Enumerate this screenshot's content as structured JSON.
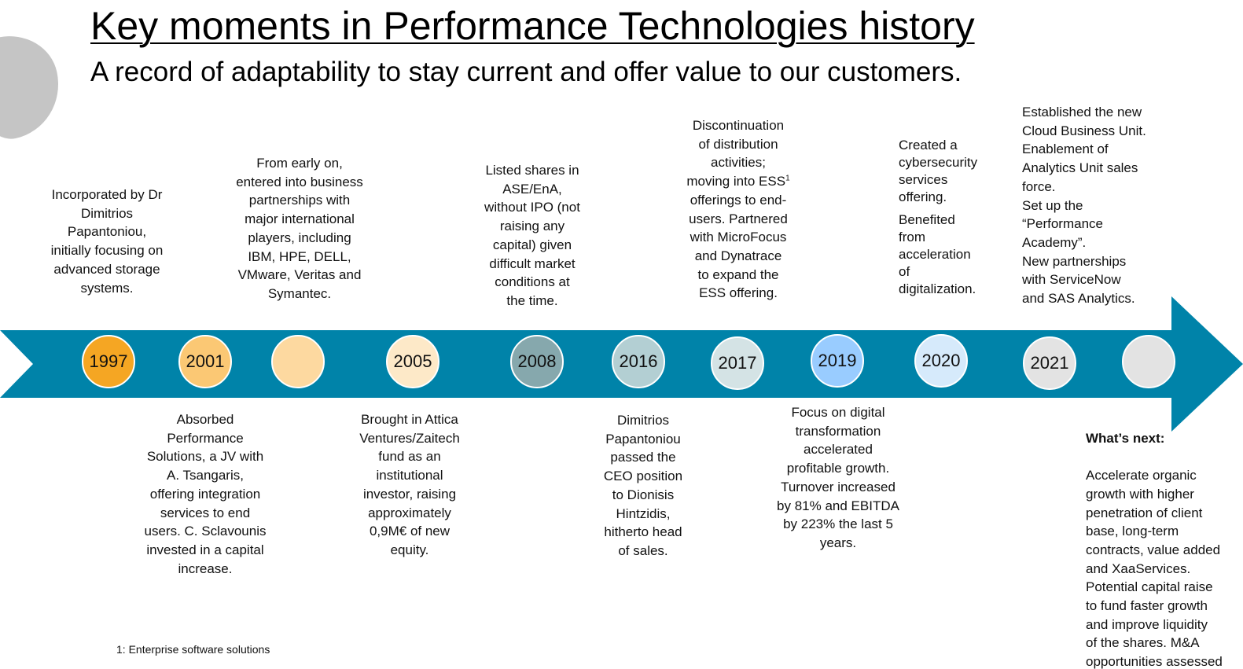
{
  "title": "Key moments in Performance Technologies history",
  "subtitle": "A record of adaptability to stay current and offer value to our customers.",
  "colors": {
    "arrow": "#0083a9",
    "c1997": "#f5a623",
    "c2001": "#fbc874",
    "c_blank_orange": "#fdd9a0",
    "c2005": "#fde9c8",
    "c2008": "#86a8ad",
    "c2016": "#b3cfd3",
    "c2017": "#d4e3e5",
    "c2019": "#99ccff",
    "c2020": "#d6eafb",
    "c2021": "#e3e3e3",
    "c_blank_grey": "#e3e3e3"
  },
  "milestones": {
    "y1997": "1997",
    "y2001": "2001",
    "y2005": "2005",
    "y2008": "2008",
    "y2016": "2016",
    "y2017": "2017",
    "y2019": "2019",
    "y2020": "2020",
    "y2021": "2021"
  },
  "texts": {
    "t1997": "Incorporated by Dr\nDimitrios\nPapantoniou,\ninitially focusing on\nadvanced storage\nsystems.",
    "t_partners": "From early on,\nentered into business\npartnerships with\nmajor international\nplayers, including\nIBM, HPE, DELL,\nVMware, Veritas and\nSymantec.",
    "t2008": "Listed  shares in\nASE/EnA,\nwithout IPO (not\nraising any\ncapital) given\ndifficult market\nconditions at\nthe time.",
    "t2017_line1": "Discontinuation\nof distribution\nactivities;\nmoving into ESS",
    "t2017_sup": "1",
    "t2017_line2": "\nofferings to end-\nusers. Partnered\nwith MicroFocus\nand Dynatrace\nto expand the\nESS offering.",
    "t2020a": "Created a\ncybersecurity\nservices\noffering.",
    "t2020b": "Benefited\nfrom\nacceleration\nof\ndigitalization.",
    "t2021": "Established the new\nCloud Business Unit.\nEnablement of\nAnalytics Unit sales\nforce.\nSet up the\n“Performance\nAcademy”.\nNew partnerships\nwith ServiceNow\nand SAS Analytics.",
    "t2001": "Absorbed\nPerformance\nSolutions, a JV with\nA. Tsangaris,\noffering integration\nservices to end\nusers. C. Sclavounis\ninvested in a capital\nincrease.",
    "t2005": "Brought in Attica\nVentures/Zaitech\nfund as an\ninstitutional\ninvestor, raising\napproximately\n0,9M€ of new\nequity.",
    "t2016": "Dimitrios\nPapantoniou\npassed the\nCEO position\nto Dionisis\nHintzidis,\nhitherto head\nof sales.",
    "t2019": "Focus on digital\ntransformation\naccelerated\nprofitable growth.\nTurnover increased\nby 81% and EBITDA\nby 223% the last 5\nyears.",
    "whats_next_heading": "What’s next:",
    "whats_next_body": "Accelerate organic\ngrowth with higher\npenetration of client\nbase, long-term\ncontracts, value added\nand XaaServices.\nPotential capital raise\nto fund faster growth\nand improve liquidity\nof the shares. M&A\nopportunities assessed"
  },
  "footnote": "1: Enterprise software solutions"
}
